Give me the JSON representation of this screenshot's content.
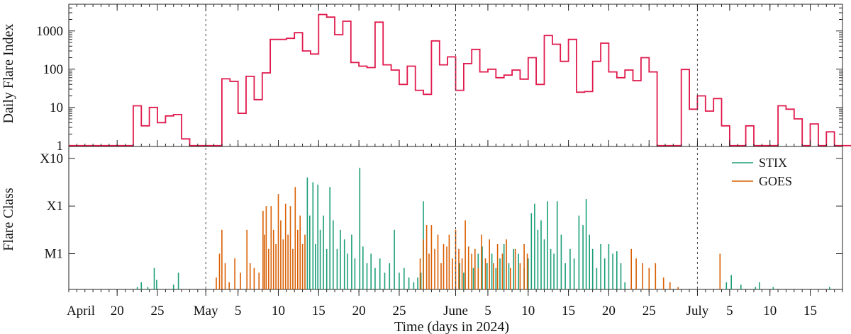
{
  "chart_data": [
    {
      "type": "line",
      "step": true,
      "ylabel": "Daily Flare Index",
      "yscale": "log",
      "ylim": [
        0.95,
        5000
      ],
      "yticks": [
        1,
        10,
        100,
        1000
      ],
      "ytick_labels": [
        "1",
        "10",
        "100",
        "1000"
      ],
      "color": "#e0194c",
      "series": [
        {
          "x_start": "2024-04-14",
          "step_days": 1,
          "values": [
            1,
            1,
            1,
            1,
            1,
            1,
            1,
            1,
            11,
            3.3,
            10,
            4,
            6,
            6.5,
            1.5,
            1,
            1,
            1,
            1,
            56,
            48,
            7,
            65,
            16,
            80,
            600,
            600,
            640,
            900,
            300,
            250,
            2700,
            2300,
            800,
            1800,
            150,
            120,
            110,
            1700,
            130,
            95,
            40,
            120,
            28,
            22,
            550,
            130,
            210,
            28,
            140,
            330,
            85,
            100,
            60,
            70,
            95,
            55,
            200,
            40,
            760,
            450,
            160,
            600,
            25,
            26,
            160,
            480,
            85,
            60,
            95,
            50,
            200,
            85,
            1,
            1,
            1,
            98,
            9,
            20,
            8,
            17,
            3.3,
            1,
            1,
            3.3,
            1,
            1,
            1,
            11,
            9,
            5,
            1,
            3.7,
            1,
            2.3,
            1,
            1,
            1,
            1,
            1,
            2.4,
            1
          ]
        }
      ],
      "x_type": "date",
      "xlim": [
        "2024-04-14",
        "2024-07-19"
      ]
    },
    {
      "type": "bar",
      "ylabel": "Flare Class",
      "xlabel": "Time (days in 2024)",
      "yscale": "log",
      "yticks": [
        "M1",
        "X1",
        "X10"
      ],
      "legend": {
        "position": "top-right",
        "entries": [
          "STIX",
          "GOES"
        ]
      },
      "colors": {
        "STIX": "#1b9e77",
        "GOES": "#d95f02"
      },
      "x_type": "date",
      "xlim": [
        "2024-04-14",
        "2024-07-19"
      ],
      "x_ticks": [
        "April",
        "20",
        "25",
        "May",
        "5",
        "10",
        "15",
        "20",
        "25",
        "June",
        "5",
        "10",
        "15",
        "20",
        "25",
        "July",
        "5",
        "10",
        "15"
      ],
      "vlines": [
        "2024-05-01",
        "2024-06-01",
        "2024-07-01"
      ],
      "series": [
        {
          "name": "STIX",
          "note_unit": "flare class as log10(peak flux W/m^2), M1 = -5, X1 = -4, X10 = -3",
          "points": [
            [
              "2024-04-22.5",
              -5.7
            ],
            [
              "2024-04-23.0",
              -5.6
            ],
            [
              "2024-04-23.8",
              -5.7
            ],
            [
              "2024-04-24.6",
              -5.3
            ],
            [
              "2024-04-24.9",
              -5.55
            ],
            [
              "2024-04-27.0",
              -5.65
            ],
            [
              "2024-04-27.6",
              -5.4
            ],
            [
              "2024-05-13.6",
              -3.4
            ],
            [
              "2024-05-13.9",
              -4.2
            ],
            [
              "2024-05-14.3",
              -3.5
            ],
            [
              "2024-05-14.6",
              -4.8
            ],
            [
              "2024-05-14.9",
              -3.55
            ],
            [
              "2024-05-15.2",
              -4.5
            ],
            [
              "2024-05-15.6",
              -4.2
            ],
            [
              "2024-05-16.0",
              -4.9
            ],
            [
              "2024-05-16.4",
              -3.6
            ],
            [
              "2024-05-16.8",
              -4.3
            ],
            [
              "2024-05-17.3",
              -4.9
            ],
            [
              "2024-05-17.7",
              -4.5
            ],
            [
              "2024-05-18.2",
              -4.7
            ],
            [
              "2024-05-18.6",
              -5.0
            ],
            [
              "2024-05-19.1",
              -4.6
            ],
            [
              "2024-05-19.5",
              -5.1
            ],
            [
              "2024-05-20.1",
              -3.2
            ],
            [
              "2024-05-20.5",
              -4.85
            ],
            [
              "2024-05-21.0",
              -5.2
            ],
            [
              "2024-05-21.5",
              -5.0
            ],
            [
              "2024-05-22.0",
              -5.3
            ],
            [
              "2024-05-22.6",
              -5.1
            ],
            [
              "2024-05-23.2",
              -5.4
            ],
            [
              "2024-05-23.8",
              -5.2
            ],
            [
              "2024-05-24.4",
              -4.5
            ],
            [
              "2024-05-25.0",
              -5.4
            ],
            [
              "2024-05-25.6",
              -5.3
            ],
            [
              "2024-05-26.2",
              -5.5
            ],
            [
              "2024-05-26.8",
              -5.6
            ],
            [
              "2024-05-27.3",
              -5.5
            ],
            [
              "2024-05-27.7",
              -5.4
            ],
            [
              "2024-05-28.0",
              -3.9
            ],
            [
              "2024-06-01.5",
              -5.2
            ],
            [
              "2024-06-02.0",
              -5.4
            ],
            [
              "2024-06-02.6",
              -5.1
            ],
            [
              "2024-06-03.2",
              -5.3
            ],
            [
              "2024-06-03.8",
              -5.0
            ],
            [
              "2024-06-04.3",
              -4.85
            ],
            [
              "2024-06-04.9",
              -5.2
            ],
            [
              "2024-06-05.5",
              -5.0
            ],
            [
              "2024-06-06.0",
              -5.3
            ],
            [
              "2024-06-06.5",
              -5.1
            ],
            [
              "2024-06-07.0",
              -4.8
            ],
            [
              "2024-06-07.6",
              -5.2
            ],
            [
              "2024-06-08.2",
              -4.9
            ],
            [
              "2024-06-08.8",
              -5.0
            ],
            [
              "2024-06-09.5",
              -5.3
            ],
            [
              "2024-06-10.0",
              -5.1
            ],
            [
              "2024-06-10.4",
              -4.15
            ],
            [
              "2024-06-10.8",
              -3.95
            ],
            [
              "2024-06-11.2",
              -4.5
            ],
            [
              "2024-06-11.6",
              -4.3
            ],
            [
              "2024-06-12.0",
              -4.7
            ],
            [
              "2024-06-12.4",
              -3.9
            ],
            [
              "2024-06-12.8",
              -4.9
            ],
            [
              "2024-06-13.2",
              -5.0
            ],
            [
              "2024-06-13.6",
              -3.9
            ],
            [
              "2024-06-14.1",
              -4.6
            ],
            [
              "2024-06-14.6",
              -5.2
            ],
            [
              "2024-06-15.2",
              -4.9
            ],
            [
              "2024-06-15.7",
              -5.1
            ],
            [
              "2024-06-16.3",
              -4.2
            ],
            [
              "2024-06-16.8",
              -4.4
            ],
            [
              "2024-06-17.2",
              -3.85
            ],
            [
              "2024-06-17.6",
              -4.6
            ],
            [
              "2024-06-18.0",
              -4.9
            ],
            [
              "2024-06-18.5",
              -5.3
            ],
            [
              "2024-06-19.0",
              -4.8
            ],
            [
              "2024-06-19.5",
              -5.1
            ],
            [
              "2024-06-20.0",
              -4.8
            ],
            [
              "2024-06-20.5",
              -5.0
            ],
            [
              "2024-06-21.0",
              -4.95
            ],
            [
              "2024-06-21.5",
              -5.2
            ],
            [
              "2024-06-22.0",
              -5.6
            ],
            [
              "2024-07-04.6",
              -5.6
            ],
            [
              "2024-07-05.2",
              -5.45
            ],
            [
              "2024-07-06.4",
              -5.65
            ],
            [
              "2024-07-08.2",
              -5.7
            ],
            [
              "2024-07-08.7",
              -5.6
            ],
            [
              "2024-07-10.4",
              -5.7
            ],
            [
              "2024-07-17.4",
              -5.7
            ]
          ]
        },
        {
          "name": "GOES",
          "points": [
            [
              "2024-05-02.3",
              -5.5
            ],
            [
              "2024-05-02.7",
              -5.0
            ],
            [
              "2024-05-03.0",
              -4.5
            ],
            [
              "2024-05-03.4",
              -5.2
            ],
            [
              "2024-05-03.9",
              -5.6
            ],
            [
              "2024-05-04.6",
              -5.1
            ],
            [
              "2024-05-05.3",
              -5.4
            ],
            [
              "2024-05-06.1",
              -4.5
            ],
            [
              "2024-05-06.5",
              -5.2
            ],
            [
              "2024-05-07.0",
              -5.3
            ],
            [
              "2024-05-07.6",
              -5.4
            ],
            [
              "2024-05-08.1",
              -4.1
            ],
            [
              "2024-05-08.3",
              -4.6
            ],
            [
              "2024-05-08.5",
              -4.0
            ],
            [
              "2024-05-08.8",
              -4.9
            ],
            [
              "2024-05-09.1",
              -4.0
            ],
            [
              "2024-05-09.4",
              -4.5
            ],
            [
              "2024-05-09.7",
              -4.8
            ],
            [
              "2024-05-10.0",
              -3.75
            ],
            [
              "2024-05-10.3",
              -4.3
            ],
            [
              "2024-05-10.6",
              -4.7
            ],
            [
              "2024-05-10.9",
              -3.95
            ],
            [
              "2024-05-11.2",
              -4.6
            ],
            [
              "2024-05-11.5",
              -4.0
            ],
            [
              "2024-05-11.8",
              -4.9
            ],
            [
              "2024-05-12.1",
              -3.6
            ],
            [
              "2024-05-12.4",
              -4.5
            ],
            [
              "2024-05-12.7",
              -4.2
            ],
            [
              "2024-05-13.0",
              -4.8
            ],
            [
              "2024-05-13.3",
              -4.6
            ],
            [
              "2024-05-27.6",
              -5.1
            ],
            [
              "2024-05-28.0",
              -4.7
            ],
            [
              "2024-05-28.4",
              -4.4
            ],
            [
              "2024-05-28.7",
              -5.0
            ],
            [
              "2024-05-29.0",
              -4.4
            ],
            [
              "2024-05-29.4",
              -4.9
            ],
            [
              "2024-05-29.8",
              -4.6
            ],
            [
              "2024-05-30.2",
              -5.2
            ],
            [
              "2024-05-30.5",
              -4.8
            ],
            [
              "2024-05-30.9",
              -4.85
            ],
            [
              "2024-05-31.2",
              -4.6
            ],
            [
              "2024-05-31.6",
              -5.1
            ],
            [
              "2024-06-01.0",
              -4.5
            ],
            [
              "2024-06-01.4",
              -4.9
            ],
            [
              "2024-06-01.8",
              -5.1
            ],
            [
              "2024-06-02.2",
              -4.3
            ],
            [
              "2024-06-02.6",
              -4.85
            ],
            [
              "2024-06-03.0",
              -5.0
            ],
            [
              "2024-06-03.4",
              -4.9
            ],
            [
              "2024-06-03.8",
              -5.3
            ],
            [
              "2024-06-04.2",
              -4.6
            ],
            [
              "2024-06-04.7",
              -5.1
            ],
            [
              "2024-06-05.2",
              -4.7
            ],
            [
              "2024-06-05.7",
              -5.2
            ],
            [
              "2024-06-06.2",
              -4.8
            ],
            [
              "2024-06-06.8",
              -5.0
            ],
            [
              "2024-06-07.3",
              -4.7
            ],
            [
              "2024-06-07.8",
              -5.3
            ],
            [
              "2024-06-08.4",
              -4.9
            ],
            [
              "2024-06-09.0",
              -5.2
            ],
            [
              "2024-06-09.5",
              -4.8
            ],
            [
              "2024-06-09.9",
              -5.0
            ],
            [
              "2024-06-22.8",
              -4.9
            ],
            [
              "2024-06-23.4",
              -5.1
            ],
            [
              "2024-06-24.2",
              -5.2
            ],
            [
              "2024-06-25.0",
              -5.3
            ],
            [
              "2024-06-25.8",
              -5.2
            ],
            [
              "2024-06-26.8",
              -5.5
            ],
            [
              "2024-06-27.6",
              -5.6
            ],
            [
              "2024-06-28.6",
              -5.7
            ],
            [
              "2024-07-03.8",
              -5.0
            ]
          ]
        }
      ]
    }
  ]
}
